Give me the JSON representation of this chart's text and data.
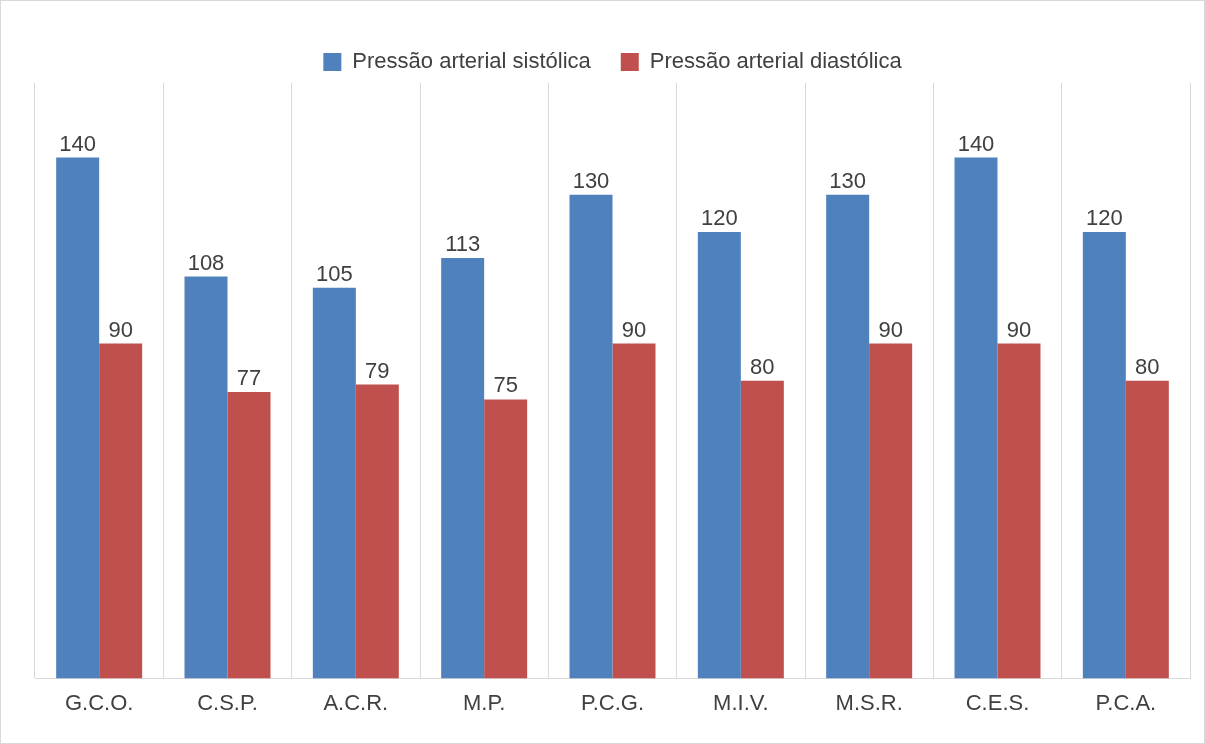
{
  "chart_data": {
    "type": "bar",
    "categories": [
      "G.C.O.",
      "C.S.P.",
      "A.C.R.",
      "M.P.",
      "P.C.G.",
      "M.I.V.",
      "M.S.R.",
      "C.E.S.",
      "P.C.A."
    ],
    "series": [
      {
        "name": "Pressão arterial sistólica",
        "color": "#4f81bd",
        "values": [
          140,
          108,
          105,
          113,
          130,
          120,
          130,
          140,
          120
        ]
      },
      {
        "name": "Pressão arterial diastólica",
        "color": "#c0504d",
        "values": [
          90,
          77,
          79,
          75,
          90,
          80,
          90,
          90,
          80
        ]
      }
    ],
    "ylim": [
      0,
      160
    ],
    "tick_labels": "x",
    "grid": "x",
    "legend": "top",
    "data_labels": true
  }
}
